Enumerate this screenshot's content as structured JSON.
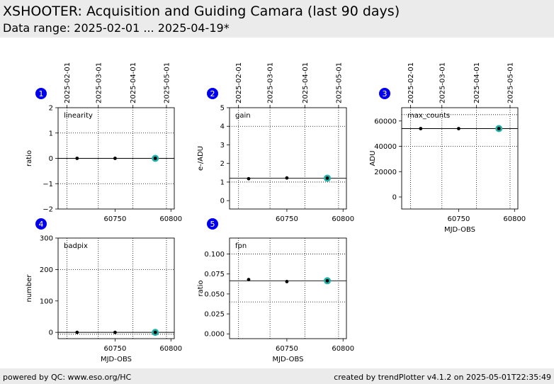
{
  "header": {
    "title": "XSHOOTER: Acquisition and Guiding Camara (last 90 days)",
    "subtitle": "Data range: 2025-02-01 ... 2025-04-19*"
  },
  "footer": {
    "left": "powered by QC: www.eso.org/HC",
    "right": "created by trendPlotter v4.1.2 on 2025-05-01T22:35:49"
  },
  "colors": {
    "badge": "#0000ee",
    "highlight": "#20b2aa",
    "header_bg": "#ebebeb"
  },
  "chart_data": [
    {
      "type": "scatter",
      "panel": "1",
      "label": "linearity",
      "ylabel": "ratio",
      "xlabel": "",
      "xlim": [
        60699,
        60803
      ],
      "ylim": [
        -2,
        2
      ],
      "yticks": [
        -2,
        -1,
        0,
        1,
        2
      ],
      "ytick_labels": [
        "−2",
        "−1",
        "0",
        "1",
        "2"
      ],
      "xticks": [
        60750,
        60800
      ],
      "ytick_lines": [
        -1,
        1
      ],
      "ref_line": 0,
      "points": {
        "x": [
          60716,
          60750,
          60786
        ],
        "y": [
          0,
          0,
          0
        ]
      },
      "highlight": {
        "x": 60786,
        "y": 0
      }
    },
    {
      "type": "scatter",
      "panel": "2",
      "label": "gain",
      "ylabel": "e-/ADU",
      "xlabel": "",
      "xlim": [
        60699,
        60803
      ],
      "ylim": [
        -0.45,
        5
      ],
      "yticks": [
        0,
        1,
        2,
        3,
        4,
        5
      ],
      "ytick_labels": [
        "0",
        "1",
        "2",
        "3",
        "4",
        "5"
      ],
      "xticks": [
        60750,
        60800
      ],
      "ytick_lines": [
        1.0,
        4.0
      ],
      "ref_line": 1.21,
      "points": {
        "x": [
          60716,
          60750,
          60786
        ],
        "y": [
          1.18,
          1.22,
          1.21
        ]
      },
      "highlight": {
        "x": 60786,
        "y": 1.21
      }
    },
    {
      "type": "scatter",
      "panel": "3",
      "label": "max_counts",
      "ylabel": "ADU",
      "xlabel": "MJD-OBS",
      "xlim": [
        60699,
        60803
      ],
      "ylim": [
        -9500,
        70500
      ],
      "yticks": [
        0,
        20000,
        40000,
        60000
      ],
      "ytick_labels": [
        "0",
        "20000",
        "40000",
        "60000"
      ],
      "xticks": [
        60750,
        60800
      ],
      "ytick_lines": [
        40000,
        65000
      ],
      "ref_line": 54000,
      "points": {
        "x": [
          60716,
          60750,
          60786
        ],
        "y": [
          54000,
          54000,
          54000
        ]
      },
      "highlight": {
        "x": 60786,
        "y": 54000
      }
    },
    {
      "type": "scatter",
      "panel": "4",
      "label": "badpix",
      "ylabel": "number",
      "xlabel": "MJD-OBS",
      "xlim": [
        60699,
        60803
      ],
      "ylim": [
        -20,
        300
      ],
      "yticks": [
        0,
        100,
        200,
        300
      ],
      "ytick_labels": [
        "0",
        "100",
        "200",
        "300"
      ],
      "xticks": [
        60750,
        60800
      ],
      "ytick_lines": [
        -6,
        200
      ],
      "ref_line": 0,
      "points": {
        "x": [
          60716,
          60750,
          60786
        ],
        "y": [
          0,
          0,
          0
        ]
      },
      "highlight": {
        "x": 60786,
        "y": 0
      }
    },
    {
      "type": "scatter",
      "panel": "5",
      "label": "fpn",
      "ylabel": "ratio",
      "xlabel": "MJD-OBS",
      "xlim": [
        60699,
        60803
      ],
      "ylim": [
        -0.006,
        0.12
      ],
      "yticks": [
        0.0,
        0.025,
        0.05,
        0.075,
        0.1
      ],
      "ytick_labels": [
        "0.000",
        "0.025",
        "0.050",
        "0.075",
        "0.100"
      ],
      "xticks": [
        60750,
        60800
      ],
      "ytick_lines": [
        0.04,
        0.1
      ],
      "ref_line": 0.0665,
      "points": {
        "x": [
          60716,
          60750,
          60786
        ],
        "y": [
          0.068,
          0.0655,
          0.0665
        ]
      },
      "highlight": {
        "x": 60786,
        "y": 0.0665
      }
    }
  ],
  "date_axis": {
    "labels": [
      "2025-02-01",
      "2025-03-01",
      "2025-04-01",
      "2025-05-01"
    ],
    "mjd": [
      60707,
      60735,
      60766,
      60796
    ]
  }
}
